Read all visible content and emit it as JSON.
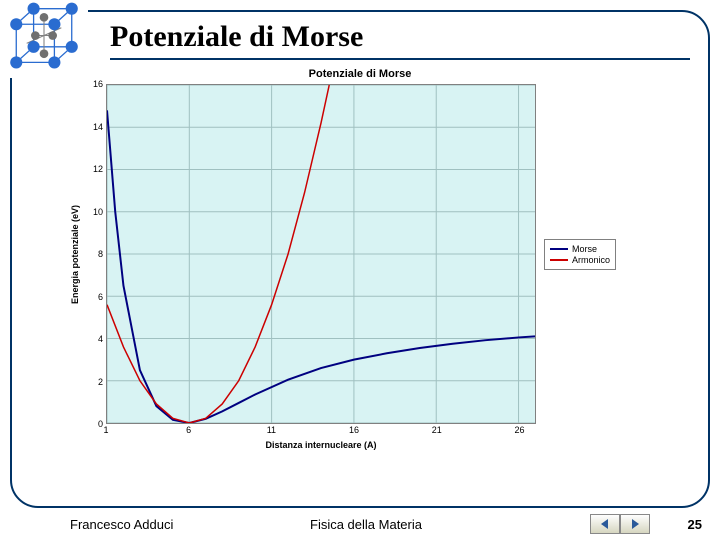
{
  "title": "Potenziale di Morse",
  "chart": {
    "type": "line",
    "title": "Potenziale di Morse",
    "xlabel": "Distanza internucleare (A)",
    "ylabel": "Energia potenziale (eV)",
    "xlim": [
      1,
      27
    ],
    "ylim": [
      0,
      16
    ],
    "xticks": [
      1,
      6,
      11,
      16,
      21,
      26
    ],
    "yticks": [
      0,
      2,
      4,
      6,
      8,
      10,
      12,
      14,
      16
    ],
    "background_color": "#d8f3f3",
    "grid_color": "#9fc0c0",
    "border_color": "#808080",
    "series": [
      {
        "name": "Morse",
        "color": "#000080",
        "line_width": 2,
        "data": [
          [
            1,
            14.8
          ],
          [
            1.5,
            10.0
          ],
          [
            2,
            6.5
          ],
          [
            3,
            2.5
          ],
          [
            4,
            0.8
          ],
          [
            5,
            0.15
          ],
          [
            6,
            0.0
          ],
          [
            7,
            0.2
          ],
          [
            8,
            0.55
          ],
          [
            9,
            0.95
          ],
          [
            10,
            1.35
          ],
          [
            12,
            2.05
          ],
          [
            14,
            2.6
          ],
          [
            16,
            3.0
          ],
          [
            18,
            3.3
          ],
          [
            20,
            3.55
          ],
          [
            22,
            3.75
          ],
          [
            24,
            3.92
          ],
          [
            26,
            4.05
          ],
          [
            27,
            4.1
          ]
        ]
      },
      {
        "name": "Armonico",
        "color": "#cc0000",
        "line_width": 1.5,
        "data": [
          [
            1,
            5.6
          ],
          [
            2,
            3.6
          ],
          [
            3,
            2.0
          ],
          [
            4,
            0.9
          ],
          [
            5,
            0.22
          ],
          [
            6,
            0.0
          ],
          [
            7,
            0.22
          ],
          [
            8,
            0.9
          ],
          [
            9,
            2.0
          ],
          [
            10,
            3.6
          ],
          [
            11,
            5.6
          ],
          [
            12,
            8.0
          ],
          [
            13,
            10.9
          ],
          [
            14,
            14.2
          ],
          [
            14.5,
            16.0
          ]
        ]
      }
    ]
  },
  "legend": {
    "items": [
      {
        "label": "Morse",
        "color": "#000080"
      },
      {
        "label": "Armonico",
        "color": "#cc0000"
      }
    ]
  },
  "footer": {
    "author": "Francesco Adduci",
    "subject": "Fisica della Materia",
    "page": "25"
  },
  "corner_icon": {
    "atom_color": "#2a6cd0",
    "bond_color": "#808080",
    "box_color": "#2a6cd0"
  },
  "nav": {
    "prev_icon": "triangle-left",
    "next_icon": "triangle-right",
    "arrow_fill": "#2a5a9a"
  }
}
